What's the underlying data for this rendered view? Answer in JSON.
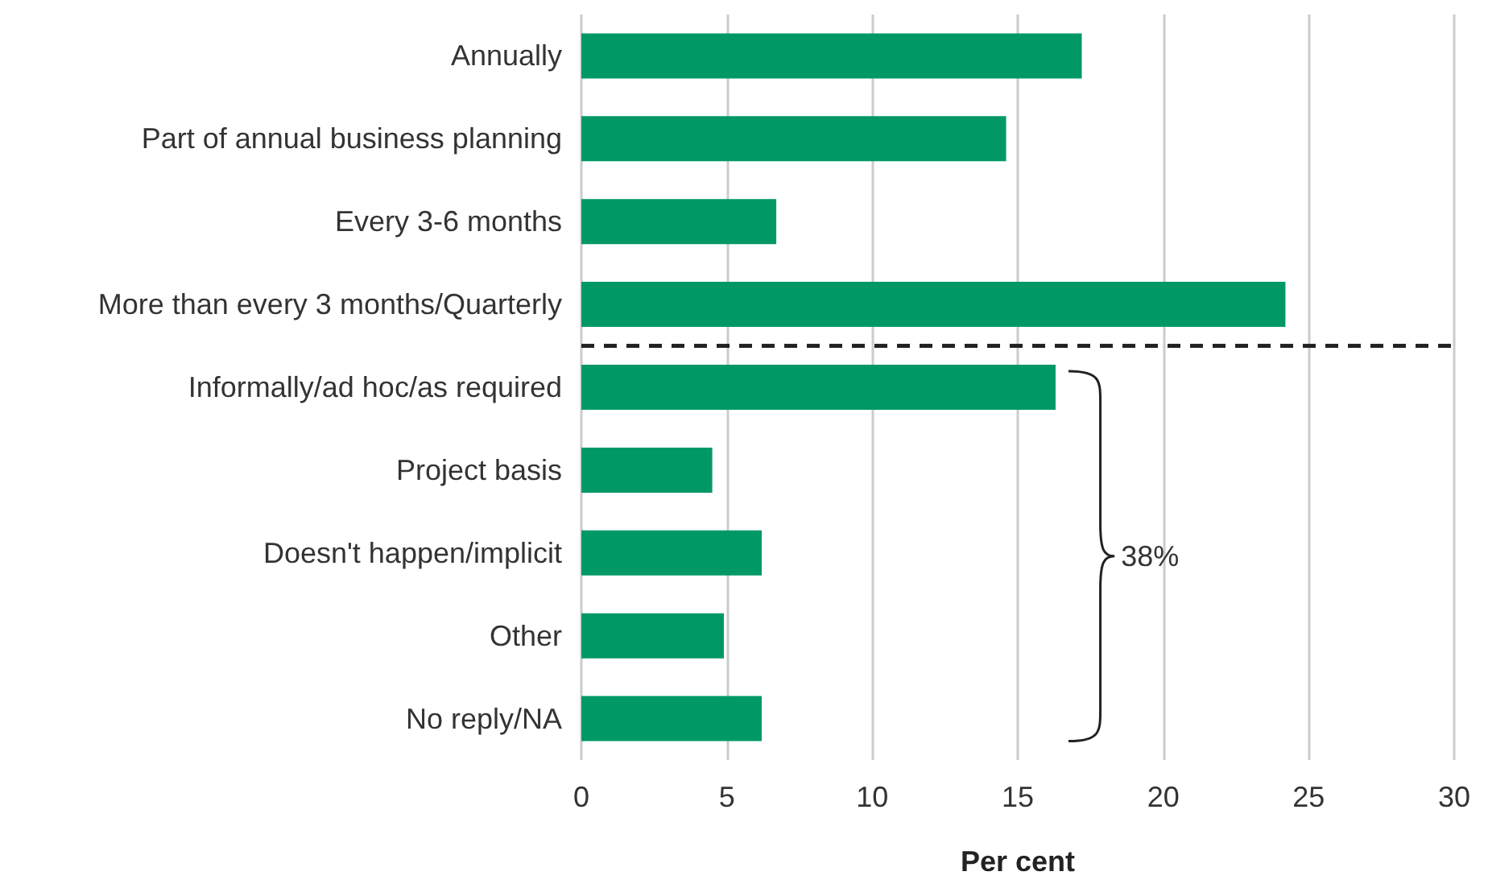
{
  "chart_data": {
    "type": "bar",
    "orientation": "horizontal",
    "xlabel": "Per cent",
    "categories": [
      "Annually",
      "Part of annual business planning",
      "Every 3-6 months",
      "More than every 3 months/Quarterly",
      "Informally/ad hoc/as required",
      "Project basis",
      "Doesn't happen/implicit",
      "Other",
      "No reply/NA"
    ],
    "values": [
      17.2,
      14.6,
      6.7,
      24.2,
      16.3,
      4.5,
      6.2,
      4.9,
      6.2
    ],
    "color": "#009966",
    "xlim": [
      0,
      30
    ],
    "xticks": [
      0,
      5,
      10,
      15,
      20,
      25,
      30
    ],
    "grid": "x",
    "annotations": [
      "38%"
    ]
  }
}
